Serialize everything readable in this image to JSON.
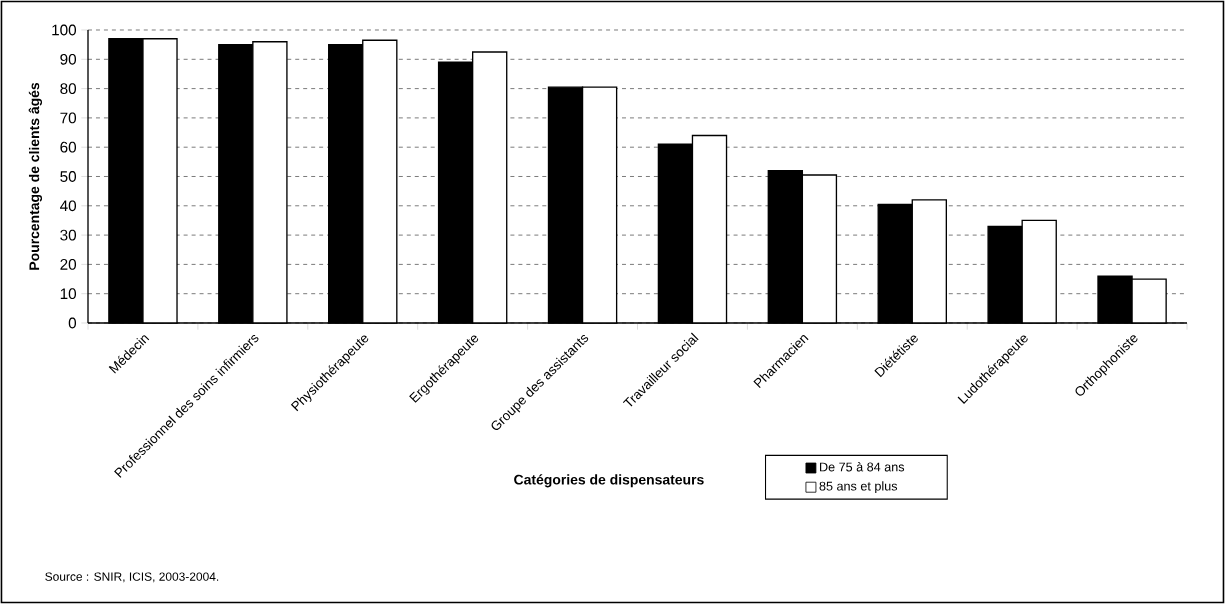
{
  "chart_data": {
    "type": "bar",
    "xlabel": "Catégories de dispensateurs",
    "ylabel": "Pourcentage de clients âgés",
    "annotations": [
      "Source : SNIR, ICIS, 2003-2004."
    ],
    "categories": [
      "Médecin",
      "Professionnel des soins infirmiers",
      "Physiothérapeute",
      "Ergothérapeute",
      "Groupe des assistants",
      "Travailleur social",
      "Pharmacien",
      "Diététiste",
      "Ludothérapeute",
      "Orthophoniste"
    ],
    "series": [
      {
        "name": "De 75 à 84 ans",
        "color": "#000000",
        "values": [
          97,
          95,
          95,
          89,
          80.5,
          61,
          52,
          40.5,
          33,
          16
        ]
      },
      {
        "name": "85 ans et plus",
        "color": "#ffffff",
        "values": [
          97,
          96,
          96.5,
          92.5,
          80.5,
          64,
          50.5,
          42,
          35,
          15
        ]
      }
    ],
    "ylim": [
      0,
      100
    ],
    "yticks": [
      0,
      10,
      20,
      30,
      40,
      50,
      60,
      70,
      80,
      90,
      100
    ],
    "grid": "y",
    "legend": "bottom"
  }
}
